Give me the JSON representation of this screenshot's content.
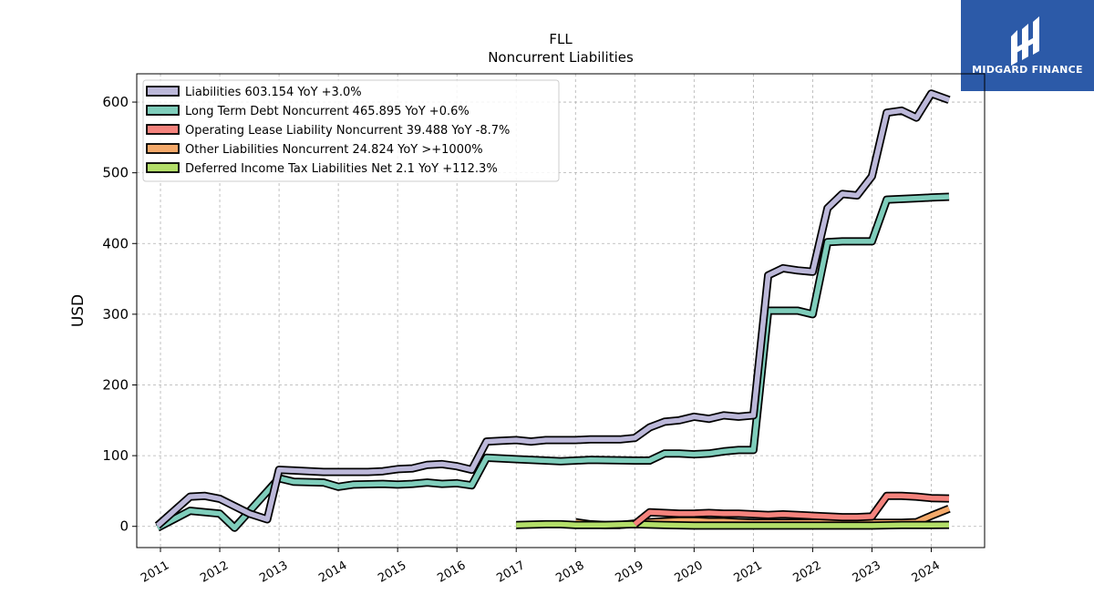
{
  "logo": {
    "text": "MIDGARD FINANCE",
    "bg_color": "#2c5aa8"
  },
  "chart_data": {
    "type": "line",
    "title": "FLL",
    "subtitle": "Noncurrent  Liabilities",
    "xlabel": "",
    "ylabel": "USD",
    "xlim": [
      2010.6,
      2024.9
    ],
    "ylim": [
      -30,
      640
    ],
    "yticks": [
      0,
      100,
      200,
      300,
      400,
      500,
      600
    ],
    "xticks": [
      "2011",
      "2012",
      "2013",
      "2014",
      "2015",
      "2016",
      "2017",
      "2018",
      "2019",
      "2020",
      "2021",
      "2022",
      "2023",
      "2024"
    ],
    "grid": true,
    "legend_position": "top-left",
    "series": [
      {
        "name": "Liabilities  603.154 YoY +3.0%",
        "color": "#bcb8d9",
        "x": [
          2010.95,
          2011.5,
          2011.75,
          2012.0,
          2012.5,
          2012.8,
          2013.0,
          2013.25,
          2013.75,
          2014.0,
          2014.5,
          2014.75,
          2015.0,
          2015.25,
          2015.5,
          2015.75,
          2016.0,
          2016.25,
          2016.5,
          2016.75,
          2017.0,
          2017.25,
          2017.5,
          2017.75,
          2018.0,
          2018.25,
          2018.5,
          2018.75,
          2019.0,
          2019.25,
          2019.5,
          2019.75,
          2020.0,
          2020.25,
          2020.5,
          2020.75,
          2021.0,
          2021.25,
          2021.5,
          2021.75,
          2022.0,
          2022.25,
          2022.5,
          2022.75,
          2023.0,
          2023.25,
          2023.5,
          2023.75,
          2024.0,
          2024.3
        ],
        "values": [
          1,
          42,
          43,
          39,
          18,
          10,
          80,
          79,
          77,
          77,
          77,
          78,
          81,
          82,
          87,
          88,
          85,
          80,
          120,
          121,
          122,
          120,
          122,
          122,
          122,
          123,
          123,
          123,
          125,
          140,
          148,
          150,
          155,
          152,
          157,
          155,
          157,
          355,
          365,
          362,
          360,
          450,
          470,
          468,
          495,
          585,
          588,
          578,
          612,
          603
        ]
      },
      {
        "name": "Long Term Debt Noncurrent  465.895 YoY +0.6%",
        "color": "#7fcdbb",
        "x": [
          2010.95,
          2011.5,
          2011.75,
          2012.0,
          2012.25,
          2013.0,
          2013.25,
          2013.75,
          2014.0,
          2014.25,
          2014.75,
          2015.0,
          2015.25,
          2015.5,
          2015.75,
          2016.0,
          2016.25,
          2016.5,
          2017.0,
          2017.5,
          2017.75,
          2018.0,
          2018.25,
          2019.0,
          2019.25,
          2019.5,
          2019.75,
          2020.0,
          2020.25,
          2020.5,
          2020.75,
          2021.0,
          2021.25,
          2021.5,
          2021.75,
          2022.0,
          2022.25,
          2022.5,
          2022.75,
          2023.0,
          2023.25,
          2023.5,
          2023.75,
          2024.0,
          2024.3
        ],
        "values": [
          -2,
          22,
          20,
          18,
          -2,
          68,
          63,
          62,
          56,
          59,
          60,
          59,
          60,
          62,
          60,
          61,
          58,
          97,
          95,
          93,
          92,
          93,
          94,
          93,
          93,
          103,
          103,
          102,
          103,
          106,
          108,
          108,
          305,
          305,
          305,
          300,
          402,
          403,
          403,
          403,
          462,
          463,
          464,
          465,
          466
        ]
      },
      {
        "name": "Operating Lease Liability Noncurrent  39.488 YoY -8.7%",
        "color": "#f4837d",
        "x": [
          2019.0,
          2019.25,
          2019.5,
          2019.75,
          2020.0,
          2020.25,
          2020.5,
          2020.75,
          2021.0,
          2021.25,
          2021.5,
          2021.75,
          2022.0,
          2022.25,
          2022.5,
          2022.75,
          2023.0,
          2023.25,
          2023.5,
          2023.75,
          2024.0,
          2024.3
        ],
        "values": [
          3,
          20,
          19,
          18,
          18,
          19,
          18,
          18,
          17,
          16,
          17,
          16,
          15,
          14,
          13,
          13,
          14,
          43,
          43,
          42,
          40,
          39.5
        ]
      },
      {
        "name": "Other Liabilities Noncurrent  24.824 YoY >+1000%",
        "color": "#f4a96a",
        "x": [
          2018.0,
          2018.25,
          2018.5,
          2018.75,
          2019.0,
          2019.25,
          2019.5,
          2019.75,
          2020.0,
          2020.25,
          2020.5,
          2020.75,
          2021.0,
          2021.5,
          2022.0,
          2022.5,
          2023.0,
          2023.5,
          2023.75,
          2024.0,
          2024.3
        ],
        "values": [
          6,
          3,
          2,
          2,
          4,
          6,
          7,
          8,
          8,
          7,
          7,
          6,
          5,
          5,
          5,
          5,
          5,
          5,
          6,
          15,
          25
        ]
      },
      {
        "name": "Deferred Income Tax Liabilities Net  2.1 YoY +112.3%",
        "color": "#b3de69",
        "x": [
          2017.0,
          2017.5,
          2017.75,
          2018.0,
          2018.5,
          2019.0,
          2019.5,
          2020.0,
          2020.5,
          2021.0,
          2021.5,
          2022.0,
          2022.5,
          2023.0,
          2023.5,
          2024.0,
          2024.3
        ],
        "values": [
          2,
          3,
          3,
          2,
          2,
          3,
          2,
          1,
          1,
          1,
          1,
          1,
          1,
          1,
          2,
          2,
          2.1
        ]
      }
    ]
  }
}
